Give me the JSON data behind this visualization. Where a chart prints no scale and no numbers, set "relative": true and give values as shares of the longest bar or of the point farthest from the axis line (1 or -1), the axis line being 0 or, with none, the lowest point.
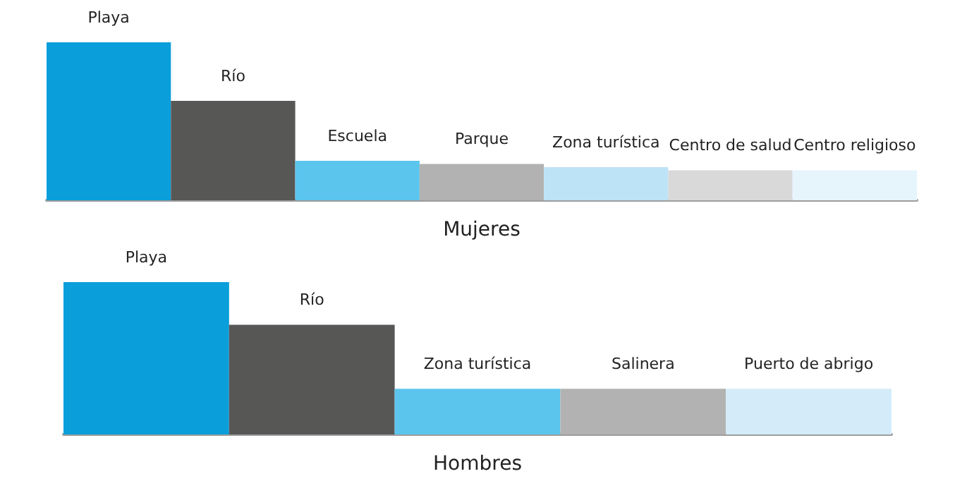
{
  "chart_data": [
    {
      "type": "bar",
      "relative": true,
      "xlabel": "Mujeres",
      "categories": [
        "Playa",
        "Río",
        "Escuela",
        "Parque",
        "Zona turística",
        "Centro de salud",
        "Centro religioso"
      ],
      "values": [
        1,
        0.63,
        0.25,
        0.23,
        0.21,
        0.19,
        0.19
      ],
      "colors": [
        "#0a9edb",
        "#575756",
        "#5bc5ee",
        "#b2b2b2",
        "#bde3f7",
        "#d9d9d9",
        "#e6f4fc"
      ]
    },
    {
      "type": "bar",
      "relative": true,
      "xlabel": "Hombres",
      "categories": [
        "Playa",
        "Río",
        "Zona turística",
        "Salinera",
        "Puerto de abrigo"
      ],
      "values": [
        1,
        0.72,
        0.3,
        0.3,
        0.3
      ],
      "colors": [
        "#0a9edb",
        "#575756",
        "#5bc5ee",
        "#b2b2b2",
        "#d4ecf9"
      ]
    }
  ]
}
